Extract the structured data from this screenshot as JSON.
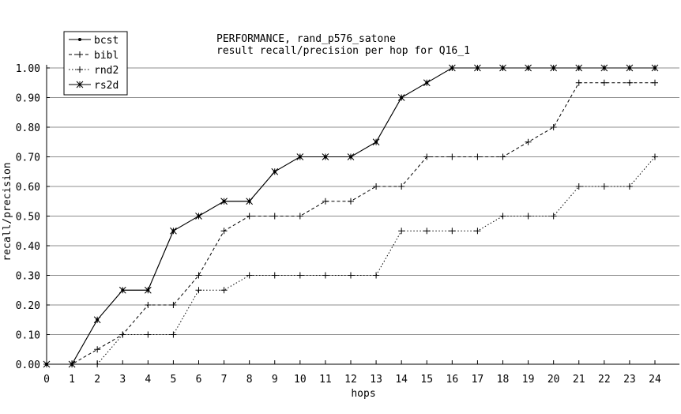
{
  "chart_data": {
    "type": "line",
    "title": "PERFORMANCE, rand_p576_satone",
    "subtitle": "result recall/precision per hop for Q16_1",
    "xlabel": "hops",
    "ylabel": "recall/precision",
    "xlim": [
      0,
      24
    ],
    "ylim": [
      0,
      1.0
    ],
    "grid": true,
    "legend_position": "top-left",
    "x": [
      0,
      1,
      2,
      3,
      4,
      5,
      6,
      7,
      8,
      9,
      10,
      11,
      12,
      13,
      14,
      15,
      16,
      17,
      18,
      19,
      20,
      21,
      22,
      23,
      24
    ],
    "x_ticks": [
      "0",
      "1",
      "2",
      "3",
      "4",
      "5",
      "6",
      "7",
      "8",
      "9",
      "10",
      "11",
      "12",
      "13",
      "14",
      "15",
      "16",
      "17",
      "18",
      "19",
      "20",
      "21",
      "22",
      "23",
      "24"
    ],
    "y_ticks": [
      "0.00",
      "0.10",
      "0.20",
      "0.30",
      "0.40",
      "0.50",
      "0.60",
      "0.70",
      "0.80",
      "0.90",
      "1.00"
    ],
    "series": [
      {
        "name": "bcst",
        "dash": "solid",
        "marker": "dot",
        "values": [
          0,
          0,
          0.15,
          0.25,
          0.25,
          0.45,
          0.5,
          0.55,
          0.55,
          0.65,
          0.7,
          0.7,
          0.7,
          0.75,
          0.9,
          0.95,
          1.0,
          1.0,
          1.0,
          1.0,
          1.0,
          1.0,
          1.0,
          1.0,
          1.0
        ]
      },
      {
        "name": "bibl",
        "dash": "dashed",
        "marker": "plus",
        "values": [
          0,
          0,
          0.05,
          0.1,
          0.2,
          0.2,
          0.3,
          0.45,
          0.5,
          0.5,
          0.5,
          0.55,
          0.55,
          0.6,
          0.6,
          0.7,
          0.7,
          0.7,
          0.7,
          0.75,
          0.8,
          0.95,
          0.95,
          0.95,
          0.95
        ]
      },
      {
        "name": "rnd2",
        "dash": "dotted",
        "marker": "plus",
        "values": [
          0,
          0,
          0,
          0.1,
          0.1,
          0.1,
          0.25,
          0.25,
          0.3,
          0.3,
          0.3,
          0.3,
          0.3,
          0.3,
          0.45,
          0.45,
          0.45,
          0.45,
          0.5,
          0.5,
          0.5,
          0.6,
          0.6,
          0.6,
          0.7
        ]
      },
      {
        "name": "rs2d",
        "dash": "solid",
        "marker": "star",
        "values": [
          0,
          0,
          0.15,
          0.25,
          0.25,
          0.45,
          0.5,
          0.55,
          0.55,
          0.65,
          0.7,
          0.7,
          0.7,
          0.75,
          0.9,
          0.95,
          1.0,
          1.0,
          1.0,
          1.0,
          1.0,
          1.0,
          1.0,
          1.0,
          1.0
        ]
      }
    ]
  }
}
